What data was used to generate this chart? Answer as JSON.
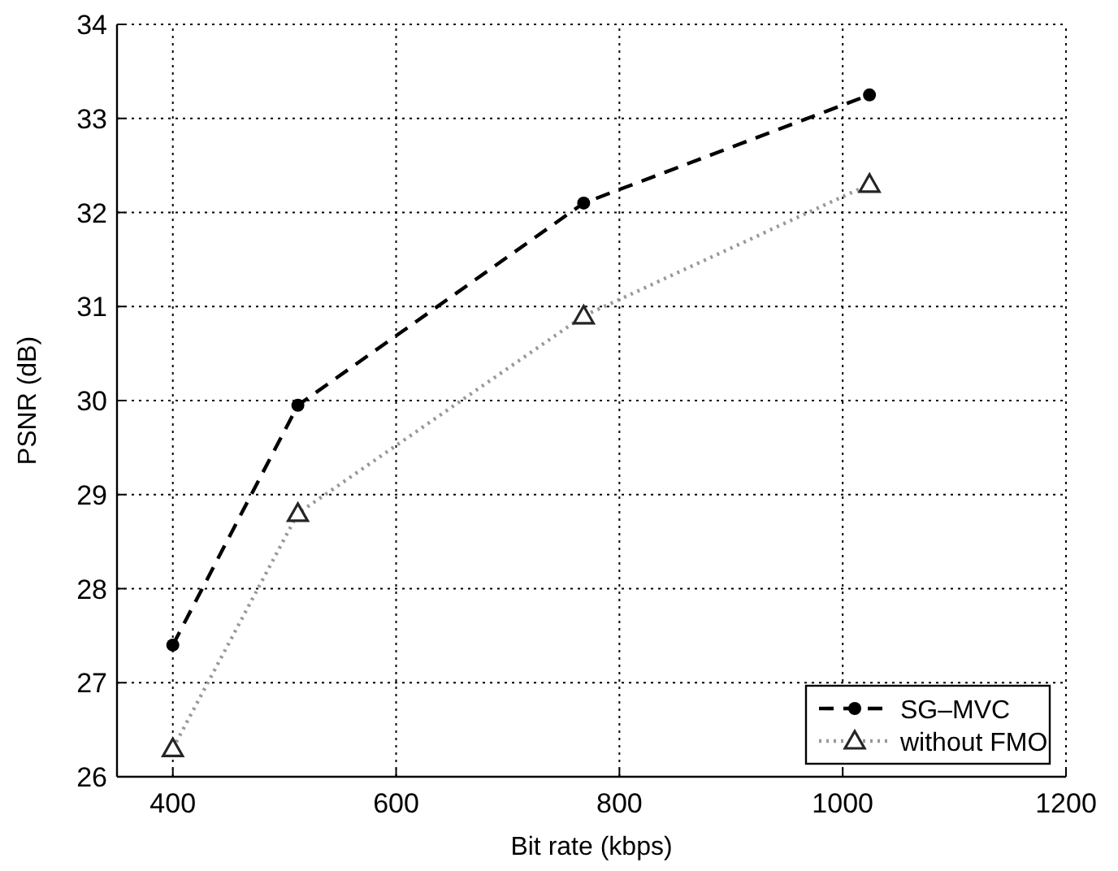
{
  "chart_data": {
    "type": "line",
    "xlabel": "Bit rate (kbps)",
    "ylabel": "PSNR (dB)",
    "x": [
      400,
      512,
      768,
      1024
    ],
    "series": [
      {
        "name": "SG–MVC",
        "color": "#000000",
        "values": [
          27.4,
          29.95,
          32.1,
          33.25
        ],
        "marker": "circle",
        "line_style": "dashed"
      },
      {
        "name": "without FMO",
        "color": "#999999",
        "values": [
          26.3,
          28.8,
          30.9,
          32.3
        ],
        "marker": "triangle",
        "line_style": "dotted"
      }
    ],
    "xlim": [
      350,
      1200
    ],
    "xticks": [
      400,
      600,
      800,
      1000,
      1200
    ],
    "ylim": [
      26,
      34
    ],
    "yticks": [
      26,
      27,
      28,
      29,
      30,
      31,
      32,
      33,
      34
    ],
    "grid": true,
    "legend": "bottom right"
  }
}
